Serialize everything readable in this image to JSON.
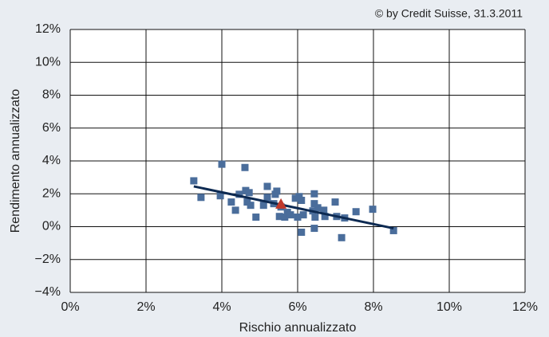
{
  "chart_data": {
    "type": "scatter",
    "annotation": "© by Credit Suisse, 31.3.2011",
    "xlabel": "Rischio annualizzato",
    "ylabel": "Rendimento annualizzato",
    "xlim": [
      0,
      12
    ],
    "ylim": [
      -4,
      12
    ],
    "xticks": [
      {
        "value": 0,
        "label": "0%"
      },
      {
        "value": 2,
        "label": "2%"
      },
      {
        "value": 4,
        "label": "4%"
      },
      {
        "value": 6,
        "label": "6%"
      },
      {
        "value": 8,
        "label": "8%"
      },
      {
        "value": 10,
        "label": "10%"
      },
      {
        "value": 12,
        "label": "12%"
      }
    ],
    "yticks": [
      {
        "value": -4,
        "label": "−4%"
      },
      {
        "value": -2,
        "label": "−2%"
      },
      {
        "value": 0,
        "label": "0%"
      },
      {
        "value": 2,
        "label": "2%"
      },
      {
        "value": 4,
        "label": "4%"
      },
      {
        "value": 6,
        "label": "6%"
      },
      {
        "value": 8,
        "label": "8%"
      },
      {
        "value": 10,
        "label": "10%"
      },
      {
        "value": 12,
        "label": "12%"
      }
    ],
    "grid": true,
    "series": [
      {
        "color": "#4a6d9b",
        "marker": "square",
        "x": [
          3.26,
          3.45,
          4.0,
          3.96,
          4.25,
          4.36,
          4.46,
          4.61,
          4.63,
          4.72,
          4.67,
          4.76,
          4.9,
          5.1,
          5.2,
          5.2,
          5.41,
          5.45,
          5.37,
          5.52,
          5.56,
          5.66,
          5.73,
          5.81,
          5.94,
          6.0,
          6.04,
          6.1,
          6.15,
          6.1,
          6.4,
          6.44,
          6.44,
          6.46,
          6.44,
          6.53,
          6.69,
          6.72,
          6.99,
          7.03,
          7.16,
          7.24,
          7.54,
          7.98,
          8.53
        ],
        "values": [
          2.79,
          1.78,
          3.8,
          1.88,
          1.5,
          1.0,
          1.97,
          3.6,
          2.2,
          2.07,
          1.5,
          1.3,
          0.58,
          1.3,
          2.45,
          1.78,
          1.97,
          2.16,
          1.4,
          0.62,
          1.2,
          0.58,
          0.87,
          0.72,
          1.73,
          0.58,
          1.83,
          1.6,
          0.72,
          -0.34,
          0.96,
          2.0,
          1.4,
          0.58,
          -0.1,
          1.15,
          1.0,
          0.62,
          1.5,
          0.62,
          -0.67,
          0.53,
          0.91,
          1.06,
          -0.24
        ]
      },
      {
        "color": "#0d2a52",
        "marker": "line",
        "x": [
          3.26,
          8.53
        ],
        "values": [
          2.45,
          -0.1
        ]
      },
      {
        "color": "#c0392b",
        "marker": "triangle",
        "x": [
          5.56
        ],
        "values": [
          1.39
        ]
      }
    ]
  }
}
